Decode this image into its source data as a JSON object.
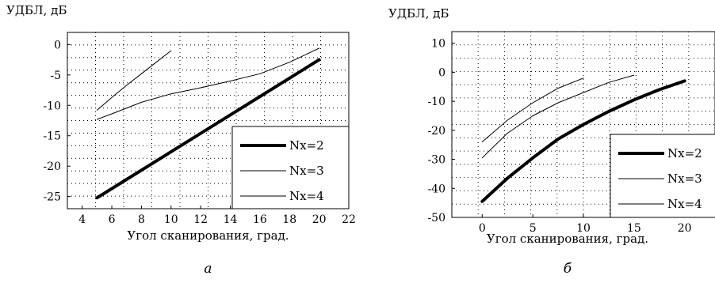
{
  "chart_data": [
    {
      "type": "line",
      "panel_caption": "а",
      "ylabel": "УДБЛ, дБ",
      "xlabel": "Угол сканирования, град.",
      "xlim": [
        3,
        22
      ],
      "ylim": [
        -27,
        2
      ],
      "xticks": [
        4,
        6,
        8,
        10,
        12,
        14,
        16,
        18,
        20,
        22
      ],
      "yticks": [
        0,
        -5,
        -10,
        -15,
        -20,
        -25
      ],
      "grid": true,
      "legend_position": "right",
      "series": [
        {
          "name": "Nx=2",
          "linewidth": "thick",
          "x": [
            5,
            20
          ],
          "y": [
            -25.2,
            -2.5
          ]
        },
        {
          "name": "Nx=3",
          "linewidth": "thin",
          "x": [
            5,
            6,
            8,
            10,
            12,
            14,
            16,
            18,
            20
          ],
          "y": [
            -12.3,
            -11.4,
            -9.5,
            -8.1,
            -7.1,
            -6.0,
            -4.8,
            -2.9,
            -0.6
          ]
        },
        {
          "name": "Nx=4",
          "linewidth": "thin",
          "x": [
            5,
            6,
            7,
            8,
            9,
            10
          ],
          "y": [
            -10.8,
            -8.7,
            -6.7,
            -4.8,
            -2.9,
            -1.0
          ]
        }
      ]
    },
    {
      "type": "line",
      "panel_caption": "б",
      "ylabel": "УДБЛ, дБ",
      "xlabel": "Угол сканирования, град.",
      "xlim": [
        -3,
        23
      ],
      "ylim": [
        -50,
        14
      ],
      "xticks": [
        0,
        5,
        10,
        15,
        20
      ],
      "yticks": [
        10,
        0,
        -10,
        -20,
        -30,
        -40,
        -50
      ],
      "grid": true,
      "legend_position": "right",
      "series": [
        {
          "name": "Nx=2",
          "linewidth": "thick",
          "x": [
            0,
            2.5,
            5,
            7.5,
            10,
            12.5,
            15,
            17.5,
            20
          ],
          "y": [
            -44.5,
            -36.5,
            -29.5,
            -23,
            -18,
            -13.5,
            -9.5,
            -6,
            -3
          ]
        },
        {
          "name": "Nx=3",
          "linewidth": "thin",
          "x": [
            0,
            2.5,
            5,
            7.5,
            10,
            12.5,
            15
          ],
          "y": [
            -29.5,
            -21,
            -15,
            -10.5,
            -7,
            -3.5,
            -1
          ]
        },
        {
          "name": "Nx=4",
          "linewidth": "thin",
          "x": [
            0,
            2.5,
            5,
            7.5,
            10
          ],
          "y": [
            -24,
            -16.5,
            -10.5,
            -5.5,
            -2
          ]
        }
      ]
    }
  ]
}
